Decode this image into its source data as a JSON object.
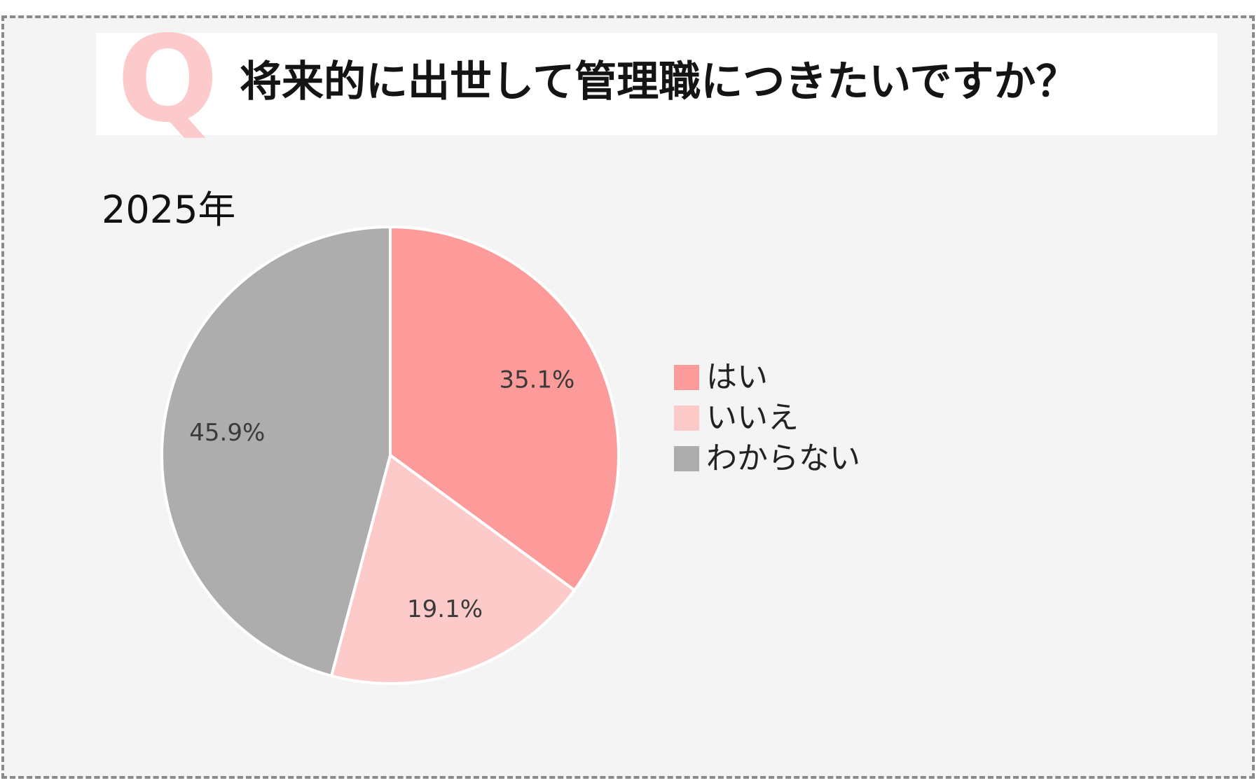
{
  "header": {
    "q_mark": "Q",
    "question": "将来的に出世して管理職につきたいですか？"
  },
  "chart_data": {
    "type": "pie",
    "subtitle": "2025年",
    "slices": [
      {
        "label": "はい",
        "value": 35.1,
        "value_label": "35.1%",
        "color": "#fd9b9b"
      },
      {
        "label": "いいえ",
        "value": 19.1,
        "value_label": "19.1%",
        "color": "#fdcaca"
      },
      {
        "label": "わからない",
        "value": 45.9,
        "value_label": "45.9%",
        "color": "#adadad"
      }
    ],
    "start_angle": "12 o'clock",
    "direction": "clockwise",
    "legend_position": "right"
  }
}
